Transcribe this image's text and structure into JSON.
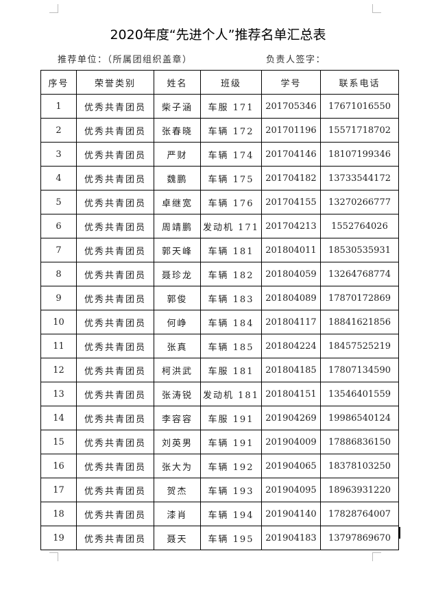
{
  "title": "2020年度“先进个人”推荐名单汇总表",
  "recommend_unit": "推荐单位：（所属团组织盖章）",
  "signature": "负责人签字：",
  "headers": [
    "序号",
    "荣誉类别",
    "姓名",
    "班级",
    "学号",
    "联系电话"
  ],
  "rows": [
    [
      "1",
      "优秀共青团员",
      "柴子涵",
      "车服 171",
      "201705346",
      "17671016550"
    ],
    [
      "2",
      "优秀共青团员",
      "张春晓",
      "车辆 172",
      "201701196",
      "15571718702"
    ],
    [
      "3",
      "优秀共青团员",
      "严财",
      "车辆 174",
      "201704146",
      "18107199346"
    ],
    [
      "4",
      "优秀共青团员",
      "魏鹏",
      "车辆 175",
      "201704182",
      "13733544172"
    ],
    [
      "5",
      "优秀共青团员",
      "卓继宽",
      "车辆 176",
      "201704155",
      "13270266777"
    ],
    [
      "6",
      "优秀共青团员",
      "周靖鹏",
      "发动机 171",
      "201704213",
      "1552764026"
    ],
    [
      "7",
      "优秀共青团员",
      "郭天峰",
      "车辆 181",
      "201804011",
      "18530535931"
    ],
    [
      "8",
      "优秀共青团员",
      "聂珍龙",
      "车辆 182",
      "201804059",
      "13264768774"
    ],
    [
      "9",
      "优秀共青团员",
      "郭俊",
      "车辆 183",
      "201804089",
      "17870172869"
    ],
    [
      "10",
      "优秀共青团员",
      "何峥",
      "车辆 184",
      "201804117",
      "18841621856"
    ],
    [
      "11",
      "优秀共青团员",
      "张真",
      "车辆 185",
      "201804224",
      "18457525219"
    ],
    [
      "12",
      "优秀共青团员",
      "柯洪武",
      "车服 181",
      "201804185",
      "17807134590"
    ],
    [
      "13",
      "优秀共青团员",
      "张涛锐",
      "发动机 181",
      "201804151",
      "13546401559"
    ],
    [
      "14",
      "优秀共青团员",
      "李容容",
      "车服 191",
      "201904269",
      "19986540124"
    ],
    [
      "15",
      "优秀共青团员",
      "刘英男",
      "车辆 191",
      "201904009",
      "17886836150"
    ],
    [
      "16",
      "优秀共青团员",
      "张大为",
      "车辆 192",
      "201904065",
      "18378103250"
    ],
    [
      "17",
      "优秀共青团员",
      "贺杰",
      "车辆 193",
      "201904095",
      "18963931220"
    ],
    [
      "18",
      "优秀共青团员",
      "漆肖",
      "车辆 194",
      "201904140",
      "17828764007"
    ],
    [
      "19",
      "优秀共青团员",
      "聂天",
      "车辆 195",
      "201904183",
      "13797869670"
    ]
  ]
}
